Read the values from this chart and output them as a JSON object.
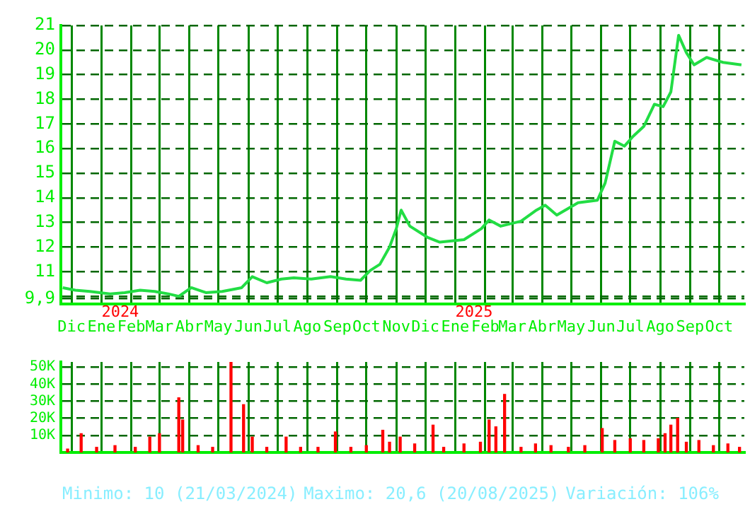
{
  "chart_data": [
    {
      "type": "line",
      "color": "#22dd44",
      "marker": "none",
      "line_style": "solid",
      "grid": true,
      "legend": false,
      "x": [
        "2023-11-22",
        "2023-12-05",
        "2023-12-20",
        "2024-01-10",
        "2024-01-25",
        "2024-02-10",
        "2024-02-25",
        "2024-03-10",
        "2024-03-21",
        "2024-04-03",
        "2024-04-18",
        "2024-05-05",
        "2024-05-25",
        "2024-06-05",
        "2024-06-20",
        "2024-07-05",
        "2024-07-18",
        "2024-08-05",
        "2024-08-25",
        "2024-09-10",
        "2024-09-25",
        "2024-10-05",
        "2024-10-15",
        "2024-10-25",
        "2024-11-01",
        "2024-11-06",
        "2024-11-15",
        "2024-12-03",
        "2024-12-16",
        "2025-01-10",
        "2025-01-28",
        "2025-02-05",
        "2025-02-17",
        "2025-03-10",
        "2025-03-26",
        "2025-04-04",
        "2025-04-16",
        "2025-05-08",
        "2025-05-28",
        "2025-06-05",
        "2025-06-15",
        "2025-06-25",
        "2025-07-04",
        "2025-07-15",
        "2025-07-26",
        "2025-08-04",
        "2025-08-12",
        "2025-08-20",
        "2025-08-28",
        "2025-09-05",
        "2025-09-18",
        "2025-10-05",
        "2025-10-24"
      ],
      "values": [
        10.35,
        10.25,
        10.2,
        10.1,
        10.15,
        10.25,
        10.2,
        10.1,
        10.0,
        10.35,
        10.15,
        10.2,
        10.35,
        10.8,
        10.55,
        10.7,
        10.75,
        10.7,
        10.8,
        10.7,
        10.65,
        11.05,
        11.3,
        12.0,
        12.75,
        13.5,
        12.85,
        12.4,
        12.2,
        12.3,
        12.75,
        13.1,
        12.85,
        13.05,
        13.5,
        13.7,
        13.3,
        13.8,
        13.9,
        14.6,
        16.3,
        16.1,
        16.5,
        16.9,
        17.8,
        17.7,
        18.3,
        20.6,
        19.9,
        19.4,
        19.7,
        19.5,
        19.4
      ],
      "xlim": [
        "2023-11-20",
        "2025-10-27"
      ],
      "xticks": [
        {
          "value": "2023-12-01",
          "label": "Dic"
        },
        {
          "value": "2024-01-01",
          "label": "Ene"
        },
        {
          "value": "2024-02-01",
          "label": "Feb"
        },
        {
          "value": "2024-03-01",
          "label": "Mar"
        },
        {
          "value": "2024-04-01",
          "label": "Abr"
        },
        {
          "value": "2024-05-01",
          "label": "May"
        },
        {
          "value": "2024-06-01",
          "label": "Jun"
        },
        {
          "value": "2024-07-01",
          "label": "Jul"
        },
        {
          "value": "2024-08-01",
          "label": "Ago"
        },
        {
          "value": "2024-09-01",
          "label": "Sep"
        },
        {
          "value": "2024-10-01",
          "label": "Oct"
        },
        {
          "value": "2024-11-01",
          "label": "Nov"
        },
        {
          "value": "2024-12-01",
          "label": "Dic"
        },
        {
          "value": "2025-01-01",
          "label": "Ene"
        },
        {
          "value": "2025-02-01",
          "label": "Feb"
        },
        {
          "value": "2025-03-01",
          "label": "Mar"
        },
        {
          "value": "2025-04-01",
          "label": "Abr"
        },
        {
          "value": "2025-05-01",
          "label": "May"
        },
        {
          "value": "2025-06-01",
          "label": "Jun"
        },
        {
          "value": "2025-07-01",
          "label": "Jul"
        },
        {
          "value": "2025-08-01",
          "label": "Ago"
        },
        {
          "value": "2025-09-01",
          "label": "Sep"
        },
        {
          "value": "2025-10-01",
          "label": "Oct"
        }
      ],
      "ylim": [
        9.7,
        21
      ],
      "yticks": [
        {
          "value": 9.9,
          "label": "9,9"
        },
        {
          "value": 10,
          "label": null
        },
        11,
        12,
        13,
        14,
        15,
        16,
        17,
        18,
        19,
        20,
        21
      ],
      "annotations": [
        "2024",
        "2025"
      ]
    },
    {
      "type": "bar",
      "color": "#ff0000",
      "grid": true,
      "legend": false,
      "tick_labels": "y",
      "x": [
        "2023-11-27",
        "2023-12-11",
        "2023-12-27",
        "2024-01-15",
        "2024-02-05",
        "2024-02-20",
        "2024-03-01",
        "2024-03-21",
        "2024-03-25",
        "2024-04-10",
        "2024-04-25",
        "2024-05-14",
        "2024-05-27",
        "2024-06-05",
        "2024-06-20",
        "2024-07-10",
        "2024-07-25",
        "2024-08-12",
        "2024-08-30",
        "2024-09-15",
        "2024-10-01",
        "2024-10-18",
        "2024-10-25",
        "2024-11-05",
        "2024-11-20",
        "2024-12-09",
        "2024-12-20",
        "2025-01-10",
        "2025-01-27",
        "2025-02-05",
        "2025-02-12",
        "2025-02-21",
        "2025-03-10",
        "2025-03-25",
        "2025-04-10",
        "2025-04-28",
        "2025-05-15",
        "2025-06-02",
        "2025-06-15",
        "2025-07-01",
        "2025-07-15",
        "2025-07-30",
        "2025-08-06",
        "2025-08-12",
        "2025-08-19",
        "2025-08-28",
        "2025-09-10",
        "2025-09-25",
        "2025-10-10",
        "2025-10-22"
      ],
      "values": [
        2000,
        11000,
        3000,
        4000,
        3000,
        9000,
        11000,
        32000,
        19000,
        4000,
        3000,
        53000,
        28000,
        9000,
        3000,
        9000,
        3000,
        3000,
        12000,
        3000,
        4000,
        13000,
        6000,
        9000,
        5000,
        16000,
        3000,
        5000,
        6000,
        19000,
        15000,
        34000,
        3000,
        5000,
        4000,
        3000,
        4000,
        14000,
        7000,
        8000,
        7000,
        8000,
        11000,
        16000,
        20000,
        6000,
        7000,
        4000,
        5000,
        3000
      ],
      "xlim": [
        "2023-11-20",
        "2025-10-27"
      ],
      "xticks": [
        {
          "value": "2023-12-01",
          "label": null
        },
        {
          "value": "2024-01-01",
          "label": null
        },
        {
          "value": "2024-02-01",
          "label": null
        },
        {
          "value": "2024-03-01",
          "label": null
        },
        {
          "value": "2024-04-01",
          "label": null
        },
        {
          "value": "2024-05-01",
          "label": null
        },
        {
          "value": "2024-06-01",
          "label": null
        },
        {
          "value": "2024-07-01",
          "label": null
        },
        {
          "value": "2024-08-01",
          "label": null
        },
        {
          "value": "2024-09-01",
          "label": null
        },
        {
          "value": "2024-10-01",
          "label": null
        },
        {
          "value": "2024-11-01",
          "label": null
        },
        {
          "value": "2024-12-01",
          "label": null
        },
        {
          "value": "2025-01-01",
          "label": null
        },
        {
          "value": "2025-02-01",
          "label": null
        },
        {
          "value": "2025-03-01",
          "label": null
        },
        {
          "value": "2025-04-01",
          "label": null
        },
        {
          "value": "2025-05-01",
          "label": null
        },
        {
          "value": "2025-06-01",
          "label": null
        },
        {
          "value": "2025-07-01",
          "label": null
        },
        {
          "value": "2025-08-01",
          "label": null
        },
        {
          "value": "2025-09-01",
          "label": null
        },
        {
          "value": "2025-10-01",
          "label": null
        }
      ],
      "ylim": [
        0,
        53000
      ],
      "yticks": [
        {
          "value": 10000,
          "label": "10K"
        },
        {
          "value": 20000,
          "label": "20K"
        },
        {
          "value": 30000,
          "label": "30K"
        },
        {
          "value": 40000,
          "label": "40K"
        },
        {
          "value": 50000,
          "label": "50K"
        }
      ],
      "annotations": [
        "Minimo: 10 (21/03/2024)",
        "Maximo: 20,6 (20/08/2025)",
        "Variación: 106%"
      ]
    }
  ]
}
